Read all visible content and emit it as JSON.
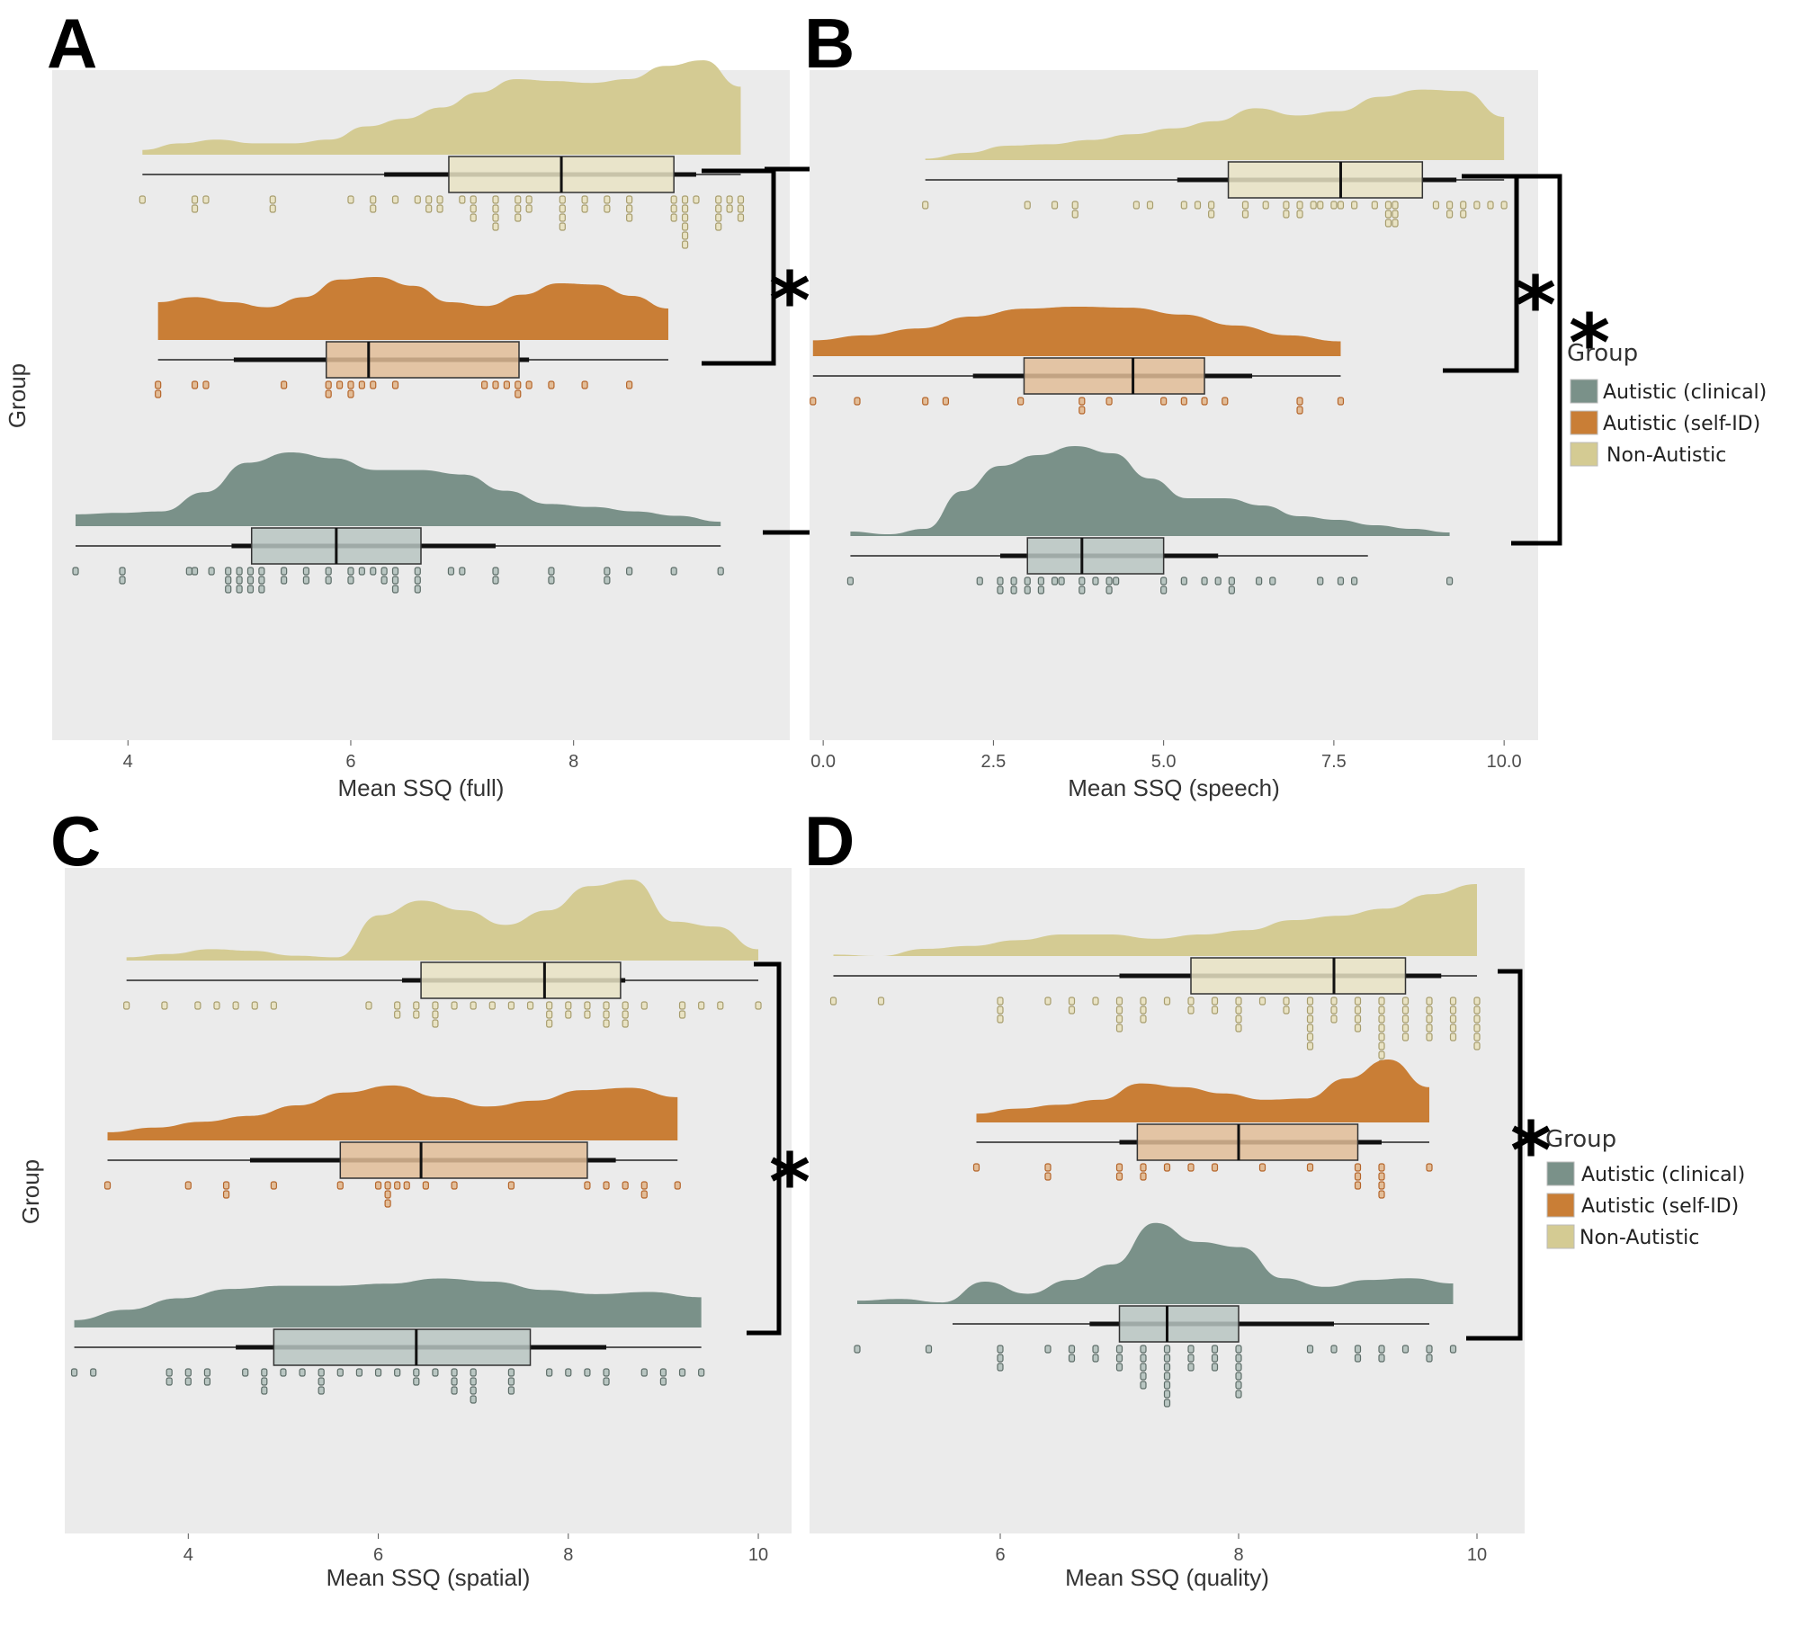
{
  "figure": {
    "panels": [
      "A",
      "B",
      "C",
      "D"
    ]
  },
  "legend": {
    "title": "Group",
    "items": [
      {
        "label": "Autistic (clinical)",
        "color": "#7a9189"
      },
      {
        "label": "Autistic (self-ID)",
        "color": "#c97e36"
      },
      {
        "label": "Non-Autistic",
        "color": "#d4cb93"
      }
    ]
  },
  "colors": {
    "panel_bg": "#ebebeb",
    "clinical": "#7a9189",
    "clinical_box": "#b9c6c2",
    "selfid": "#c97e36",
    "selfid_box": "#e2bd98",
    "nonautistic": "#d4cb93",
    "nonautistic_box": "#e9e3c4",
    "bracket": "#000000"
  },
  "chart_data": [
    {
      "panel": "A",
      "type": "raincloud",
      "title": "",
      "xlabel": "Mean SSQ (full)",
      "ylabel": "Group",
      "xlim": [
        3.32,
        9.94
      ],
      "xticks": [
        4,
        6,
        8
      ],
      "xtick_labels": [
        "4",
        "6",
        "8"
      ],
      "grid": false,
      "show_ylabel": true,
      "show_legend": false,
      "groups": [
        {
          "name": "Non-Autistic",
          "q1": 6.88,
          "median": 7.89,
          "q3": 8.9,
          "whisker_low": 4.13,
          "whisker_high": 9.5,
          "sd_low": 6.3,
          "sd_high": 9.1,
          "density_range": [
            4.13,
            9.5
          ],
          "density": [
            0.05,
            0.12,
            0.16,
            0.12,
            0.12,
            0.16,
            0.3,
            0.38,
            0.5,
            0.66,
            0.8,
            0.78,
            0.76,
            0.8,
            0.94,
            1.0,
            0.72
          ],
          "points": [
            4.13,
            4.6,
            4.7,
            4.6,
            5.3,
            5.3,
            6.0,
            6.2,
            6.2,
            6.4,
            6.6,
            6.7,
            6.7,
            6.8,
            6.8,
            7.0,
            7.1,
            7.1,
            7.1,
            7.3,
            7.3,
            7.3,
            7.3,
            7.5,
            7.5,
            7.5,
            7.6,
            7.6,
            7.9,
            7.9,
            7.9,
            7.9,
            8.1,
            8.1,
            8.3,
            8.3,
            8.5,
            8.5,
            8.5,
            8.9,
            8.9,
            8.9,
            9.0,
            9.0,
            9.0,
            9.0,
            9.0,
            9.0,
            9.1,
            9.3,
            9.3,
            9.3,
            9.3,
            9.4,
            9.4,
            9.5,
            9.5,
            9.5
          ]
        },
        {
          "name": "Autistic (self-ID)",
          "q1": 5.78,
          "median": 6.16,
          "q3": 7.51,
          "whisker_low": 4.27,
          "whisker_high": 8.85,
          "sd_low": 4.95,
          "sd_high": 7.6,
          "density_range": [
            4.27,
            8.85
          ],
          "density": [
            0.6,
            0.68,
            0.6,
            0.52,
            0.68,
            0.96,
            1.0,
            0.86,
            0.6,
            0.54,
            0.72,
            0.9,
            0.88,
            0.7,
            0.5
          ],
          "points": [
            4.27,
            4.27,
            4.6,
            4.7,
            5.4,
            5.8,
            5.8,
            5.9,
            6.0,
            6.0,
            6.1,
            6.2,
            6.4,
            7.2,
            7.3,
            7.4,
            7.5,
            7.5,
            7.6,
            7.8,
            8.1,
            8.5
          ]
        },
        {
          "name": "Autistic (clinical)",
          "q1": 5.11,
          "median": 5.87,
          "q3": 6.63,
          "whisker_low": 3.53,
          "whisker_high": 9.32,
          "sd_low": 4.93,
          "sd_high": 7.3,
          "density_range": [
            3.53,
            9.32
          ],
          "density": [
            0.16,
            0.18,
            0.2,
            0.46,
            0.86,
            1.0,
            0.92,
            0.76,
            0.76,
            0.7,
            0.48,
            0.3,
            0.26,
            0.2,
            0.14,
            0.06
          ],
          "points": [
            3.53,
            3.95,
            3.95,
            4.55,
            4.6,
            4.75,
            4.9,
            4.9,
            4.9,
            5.0,
            5.0,
            5.0,
            5.1,
            5.1,
            5.1,
            5.2,
            5.2,
            5.2,
            5.4,
            5.4,
            5.6,
            5.6,
            5.8,
            5.8,
            6.0,
            6.0,
            6.1,
            6.2,
            6.3,
            6.3,
            6.4,
            6.4,
            6.4,
            6.6,
            6.6,
            6.6,
            6.9,
            7.0,
            7.3,
            7.3,
            7.8,
            7.8,
            8.3,
            8.3,
            8.5,
            8.9,
            9.32
          ]
        }
      ],
      "significance": [
        {
          "between": [
            "Non-Autistic",
            "Autistic (self-ID)"
          ],
          "label": "*"
        },
        {
          "between": [
            "Non-Autistic",
            "Autistic (clinical)"
          ],
          "label": "*"
        }
      ]
    },
    {
      "panel": "B",
      "type": "raincloud",
      "title": "",
      "xlabel": "Mean SSQ (speech)",
      "ylabel": "",
      "xlim": [
        -0.2,
        10.5
      ],
      "xticks": [
        0,
        2.5,
        5,
        7.5,
        10
      ],
      "xtick_labels": [
        "0.0",
        "2.5",
        "5.0",
        "7.5",
        "10.0"
      ],
      "grid": false,
      "show_ylabel": false,
      "show_legend": true,
      "groups": [
        {
          "name": "Non-Autistic",
          "q1": 5.95,
          "median": 7.6,
          "q3": 8.8,
          "whisker_low": 1.5,
          "whisker_high": 10.0,
          "sd_low": 5.2,
          "sd_high": 9.3,
          "density_range": [
            1.5,
            10.0
          ],
          "density": [
            0.02,
            0.1,
            0.2,
            0.22,
            0.28,
            0.36,
            0.44,
            0.54,
            0.72,
            0.62,
            0.68,
            0.88,
            0.98,
            0.96,
            0.6
          ],
          "points": [
            1.5,
            3.0,
            3.4,
            3.7,
            3.7,
            4.6,
            4.8,
            5.3,
            5.5,
            5.7,
            5.7,
            6.2,
            6.2,
            6.5,
            6.8,
            6.8,
            7.0,
            7.0,
            7.2,
            7.3,
            7.5,
            7.6,
            7.8,
            8.1,
            8.3,
            8.3,
            8.3,
            8.4,
            8.4,
            8.4,
            9.0,
            9.2,
            9.2,
            9.4,
            9.4,
            9.6,
            9.8,
            10.0
          ]
        },
        {
          "name": "Autistic (self-ID)",
          "q1": 2.95,
          "median": 4.55,
          "q3": 5.6,
          "whisker_low": -0.15,
          "whisker_high": 7.6,
          "sd_low": 2.2,
          "sd_high": 6.3,
          "density_range": [
            -0.15,
            7.6
          ],
          "density": [
            0.32,
            0.42,
            0.56,
            0.8,
            0.96,
            1.0,
            0.98,
            0.84,
            0.62,
            0.42,
            0.3
          ],
          "points": [
            -0.15,
            0.5,
            1.5,
            1.8,
            2.9,
            3.8,
            3.8,
            4.2,
            5.0,
            5.3,
            5.6,
            5.9,
            7.0,
            7.0,
            7.6
          ]
        },
        {
          "name": "Autistic (clinical)",
          "q1": 3.0,
          "median": 3.8,
          "q3": 5.0,
          "whisker_low": 0.4,
          "whisker_high": 8.0,
          "sd_low": 2.6,
          "sd_high": 5.8,
          "density_range": [
            0.4,
            9.2
          ],
          "density": [
            0.05,
            0.02,
            0.08,
            0.5,
            0.78,
            0.9,
            1.0,
            0.92,
            0.64,
            0.42,
            0.42,
            0.34,
            0.22,
            0.18,
            0.12,
            0.08,
            0.04
          ],
          "points": [
            0.4,
            2.3,
            2.6,
            2.6,
            2.8,
            2.8,
            3.0,
            3.0,
            3.2,
            3.2,
            3.4,
            3.5,
            3.8,
            3.8,
            4.0,
            4.2,
            4.2,
            4.3,
            5.0,
            5.0,
            5.3,
            5.6,
            5.8,
            6.0,
            6.0,
            6.4,
            6.6,
            7.3,
            7.6,
            7.8,
            9.2
          ]
        }
      ],
      "significance": [
        {
          "between": [
            "Non-Autistic",
            "Autistic (self-ID)"
          ],
          "label": "*"
        },
        {
          "between": [
            "Non-Autistic",
            "Autistic (clinical)"
          ],
          "label": "*"
        }
      ]
    },
    {
      "panel": "C",
      "type": "raincloud",
      "title": "",
      "xlabel": "Mean SSQ (spatial)",
      "ylabel": "Group",
      "xlim": [
        2.7,
        10.35
      ],
      "xticks": [
        4,
        6,
        8,
        10
      ],
      "xtick_labels": [
        "4",
        "6",
        "8",
        "10"
      ],
      "grid": false,
      "show_ylabel": true,
      "show_legend": false,
      "groups": [
        {
          "name": "Non-Autistic",
          "q1": 6.45,
          "median": 7.75,
          "q3": 8.55,
          "whisker_low": 3.35,
          "whisker_high": 10.0,
          "sd_low": 6.25,
          "sd_high": 8.6,
          "density_range": [
            3.35,
            10.0
          ],
          "density": [
            0.04,
            0.08,
            0.14,
            0.12,
            0.06,
            0.04,
            0.56,
            0.74,
            0.62,
            0.44,
            0.62,
            0.92,
            1.0,
            0.48,
            0.42,
            0.14
          ],
          "points": [
            3.35,
            3.75,
            4.1,
            4.3,
            4.5,
            4.7,
            4.9,
            5.9,
            6.2,
            6.2,
            6.4,
            6.4,
            6.6,
            6.6,
            6.6,
            6.8,
            7.0,
            7.2,
            7.4,
            7.6,
            7.8,
            7.8,
            7.8,
            8.0,
            8.0,
            8.2,
            8.2,
            8.4,
            8.4,
            8.4,
            8.6,
            8.6,
            8.6,
            8.8,
            9.2,
            9.2,
            9.4,
            9.6,
            10.0
          ]
        },
        {
          "name": "Autistic (self-ID)",
          "q1": 5.6,
          "median": 6.45,
          "q3": 8.2,
          "whisker_low": 3.15,
          "whisker_high": 9.15,
          "sd_low": 4.65,
          "sd_high": 8.5,
          "density_range": [
            3.15,
            9.15
          ],
          "density": [
            0.14,
            0.22,
            0.32,
            0.42,
            0.6,
            0.82,
            0.94,
            0.74,
            0.58,
            0.68,
            0.86,
            0.9,
            0.74
          ],
          "points": [
            3.15,
            4.0,
            4.4,
            4.4,
            4.9,
            5.6,
            6.0,
            6.1,
            6.1,
            6.1,
            6.2,
            6.3,
            6.5,
            6.8,
            7.4,
            8.2,
            8.4,
            8.6,
            8.8,
            8.8,
            9.15
          ]
        },
        {
          "name": "Autistic (clinical)",
          "q1": 4.9,
          "median": 6.4,
          "q3": 7.6,
          "whisker_low": 2.8,
          "whisker_high": 9.4,
          "sd_low": 4.5,
          "sd_high": 8.4,
          "density_range": [
            2.8,
            9.4
          ],
          "density": [
            0.14,
            0.34,
            0.56,
            0.74,
            0.8,
            0.8,
            0.84,
            0.94,
            0.88,
            0.72,
            0.64,
            0.68,
            0.58
          ],
          "points": [
            2.8,
            3.0,
            3.8,
            3.8,
            4.0,
            4.0,
            4.2,
            4.2,
            4.6,
            4.8,
            4.8,
            4.8,
            5.0,
            5.2,
            5.4,
            5.4,
            5.4,
            5.6,
            5.8,
            6.0,
            6.2,
            6.4,
            6.4,
            6.6,
            6.8,
            6.8,
            6.8,
            7.0,
            7.0,
            7.0,
            7.0,
            7.4,
            7.4,
            7.4,
            7.8,
            8.0,
            8.2,
            8.4,
            8.4,
            8.8,
            9.0,
            9.0,
            9.2,
            9.4
          ]
        }
      ],
      "significance": [
        {
          "between": [
            "Non-Autistic",
            "Autistic (clinical)"
          ],
          "label": "*"
        }
      ]
    },
    {
      "panel": "D",
      "type": "raincloud",
      "title": "",
      "xlabel": "Mean SSQ (quality)",
      "ylabel": "",
      "xlim": [
        4.4,
        10.4
      ],
      "xticks": [
        6,
        8,
        10
      ],
      "xtick_labels": [
        "6",
        "8",
        "10"
      ],
      "grid": false,
      "show_ylabel": false,
      "show_legend": true,
      "groups": [
        {
          "name": "Non-Autistic",
          "q1": 7.6,
          "median": 8.8,
          "q3": 9.4,
          "whisker_low": 4.6,
          "whisker_high": 10.0,
          "sd_low": 7.0,
          "sd_high": 9.7,
          "density_range": [
            4.6,
            10.0
          ],
          "density": [
            0.02,
            0.0,
            0.1,
            0.14,
            0.22,
            0.3,
            0.3,
            0.24,
            0.3,
            0.36,
            0.5,
            0.56,
            0.66,
            0.86,
            1.0
          ],
          "points": [
            4.6,
            5.0,
            6.0,
            6.0,
            6.0,
            6.4,
            6.6,
            6.6,
            6.8,
            7.0,
            7.0,
            7.0,
            7.0,
            7.2,
            7.2,
            7.2,
            7.4,
            7.6,
            7.6,
            7.8,
            7.8,
            8.0,
            8.0,
            8.0,
            8.0,
            8.2,
            8.4,
            8.4,
            8.6,
            8.6,
            8.6,
            8.6,
            8.6,
            8.6,
            8.8,
            8.8,
            8.8,
            9.0,
            9.0,
            9.0,
            9.0,
            9.2,
            9.2,
            9.2,
            9.2,
            9.2,
            9.2,
            9.2,
            9.2,
            9.4,
            9.4,
            9.4,
            9.4,
            9.4,
            9.6,
            9.6,
            9.6,
            9.6,
            9.6,
            9.8,
            9.8,
            9.8,
            9.8,
            9.8,
            10.0,
            10.0,
            10.0,
            10.0,
            10.0,
            10.0
          ]
        },
        {
          "name": "Autistic (self-ID)",
          "q1": 7.15,
          "median": 8.0,
          "q3": 9.0,
          "whisker_low": 5.8,
          "whisker_high": 9.6,
          "sd_low": 7.0,
          "sd_high": 9.2,
          "density_range": [
            5.8,
            9.6
          ],
          "density": [
            0.14,
            0.22,
            0.28,
            0.36,
            0.62,
            0.56,
            0.46,
            0.36,
            0.38,
            0.7,
            1.0,
            0.56
          ],
          "points": [
            5.8,
            6.4,
            6.4,
            7.0,
            7.0,
            7.2,
            7.2,
            7.4,
            7.6,
            7.8,
            8.2,
            8.6,
            9.0,
            9.0,
            9.0,
            9.2,
            9.2,
            9.2,
            9.2,
            9.6
          ]
        },
        {
          "name": "Autistic (clinical)",
          "q1": 7.0,
          "median": 7.4,
          "q3": 8.0,
          "whisker_low": 5.6,
          "whisker_high": 9.6,
          "sd_low": 6.75,
          "sd_high": 8.8,
          "density_range": [
            4.8,
            9.8
          ],
          "density": [
            0.04,
            0.06,
            0.02,
            0.26,
            0.12,
            0.28,
            0.46,
            0.94,
            0.72,
            0.66,
            0.3,
            0.2,
            0.28,
            0.3,
            0.24
          ],
          "points": [
            4.8,
            5.4,
            6.0,
            6.0,
            6.0,
            6.4,
            6.6,
            6.6,
            6.8,
            6.8,
            7.0,
            7.0,
            7.0,
            7.2,
            7.2,
            7.2,
            7.2,
            7.2,
            7.4,
            7.4,
            7.4,
            7.4,
            7.4,
            7.4,
            7.4,
            7.6,
            7.6,
            7.6,
            7.8,
            7.8,
            7.8,
            8.0,
            8.0,
            8.0,
            8.0,
            8.0,
            8.0,
            8.6,
            8.8,
            9.0,
            9.0,
            9.2,
            9.2,
            9.4,
            9.6,
            9.6,
            9.8
          ]
        }
      ],
      "significance": [
        {
          "between": [
            "Non-Autistic",
            "Autistic (clinical)"
          ],
          "label": "*"
        }
      ]
    }
  ]
}
